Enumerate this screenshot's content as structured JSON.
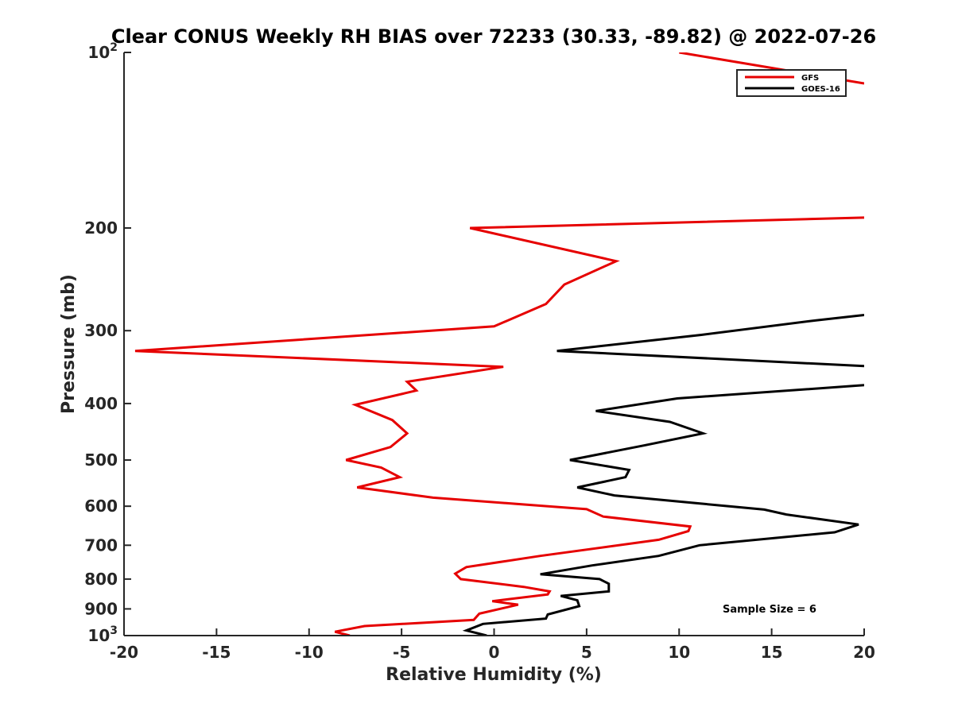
{
  "chart_data": {
    "type": "line",
    "title": "Clear CONUS Weekly RH BIAS over 72233 (30.33, -89.82) @ 2022-07-26",
    "xlabel": "Relative Humidity (%)",
    "ylabel": "Pressure (mb)",
    "xlim": [
      -20,
      20
    ],
    "ylim": [
      100,
      1000
    ],
    "yscale": "log",
    "y_reversed": true,
    "grid": false,
    "legend_position": "top-right",
    "xticks": [
      -20,
      -15,
      -10,
      -5,
      0,
      5,
      10,
      15,
      20
    ],
    "xtick_labels": [
      "-20",
      "-15",
      "-10",
      "-5",
      "0",
      "5",
      "10",
      "15",
      "20"
    ],
    "yticks": [
      {
        "value": 100,
        "base": "10",
        "exp": "2"
      },
      {
        "value": 200,
        "label": "200"
      },
      {
        "value": 300,
        "label": "300"
      },
      {
        "value": 400,
        "label": "400"
      },
      {
        "value": 500,
        "label": "500"
      },
      {
        "value": 600,
        "label": "600"
      },
      {
        "value": 700,
        "label": "700"
      },
      {
        "value": 800,
        "label": "800"
      },
      {
        "value": 900,
        "label": "900"
      },
      {
        "value": 1000,
        "base": "10",
        "exp": "3"
      }
    ],
    "annotation": "Sample Size = 6",
    "series": [
      {
        "name": "GFS",
        "color": "#e60000",
        "segments": [
          [
            [
              10,
              100
            ],
            [
              20,
              113
            ]
          ],
          [
            [
              20,
              192
            ],
            [
              -1.3,
              200
            ],
            [
              6.6,
              228
            ],
            [
              3.8,
              250
            ],
            [
              2.8,
              270
            ],
            [
              0,
              295
            ],
            [
              -19.4,
              325
            ],
            [
              0.5,
              346
            ],
            [
              -4.7,
              367
            ],
            [
              -4.2,
              380
            ],
            [
              -7.5,
              402
            ],
            [
              -5.5,
              427
            ],
            [
              -4.7,
              450
            ],
            [
              -5.6,
              475
            ],
            [
              -8,
              500
            ],
            [
              -6.1,
              515
            ],
            [
              -5.1,
              535
            ],
            [
              -7.4,
              557
            ],
            [
              -3.3,
              580
            ],
            [
              5,
              607
            ],
            [
              5.9,
              625
            ],
            [
              10.6,
              650
            ],
            [
              10.5,
              662
            ],
            [
              8.9,
              685
            ],
            [
              2.5,
              730
            ],
            [
              -1.5,
              763
            ],
            [
              -2.1,
              783
            ],
            [
              -1.8,
              800
            ],
            [
              1.6,
              825
            ],
            [
              3,
              840
            ],
            [
              2.9,
              850
            ],
            [
              -0.1,
              873
            ],
            [
              1.3,
              885
            ],
            [
              -0.8,
              917
            ],
            [
              -1.1,
              940
            ],
            [
              -7,
              963
            ],
            [
              -8.6,
              985
            ],
            [
              -7.8,
              1000
            ]
          ]
        ]
      },
      {
        "name": "GOES-16",
        "color": "#000000",
        "segments": [
          [
            [
              20,
              282
            ],
            [
              17.4,
              288
            ],
            [
              11.2,
              305
            ],
            [
              3.4,
              325
            ],
            [
              20,
              345
            ]
          ],
          [
            [
              20,
              372
            ],
            [
              9.9,
              392
            ],
            [
              5.5,
              412
            ],
            [
              9.5,
              430
            ],
            [
              11.3,
              450
            ],
            [
              8.1,
              472
            ],
            [
              4.1,
              500
            ],
            [
              7.3,
              520
            ],
            [
              7.1,
              535
            ],
            [
              4.5,
              557
            ],
            [
              6.5,
              575
            ],
            [
              14.6,
              608
            ],
            [
              15.8,
              620
            ],
            [
              19.7,
              645
            ],
            [
              18.4,
              665
            ],
            [
              11.1,
              700
            ],
            [
              8.9,
              730
            ],
            [
              5.3,
              758
            ],
            [
              2.5,
              785
            ],
            [
              5.7,
              800
            ],
            [
              6.2,
              815
            ],
            [
              6.2,
              840
            ],
            [
              3.6,
              855
            ],
            [
              4.5,
              870
            ],
            [
              4.6,
              890
            ],
            [
              2.9,
              920
            ],
            [
              2.8,
              935
            ],
            [
              -0.6,
              955
            ],
            [
              -1.5,
              980
            ],
            [
              -0.4,
              1000
            ]
          ]
        ]
      }
    ]
  }
}
